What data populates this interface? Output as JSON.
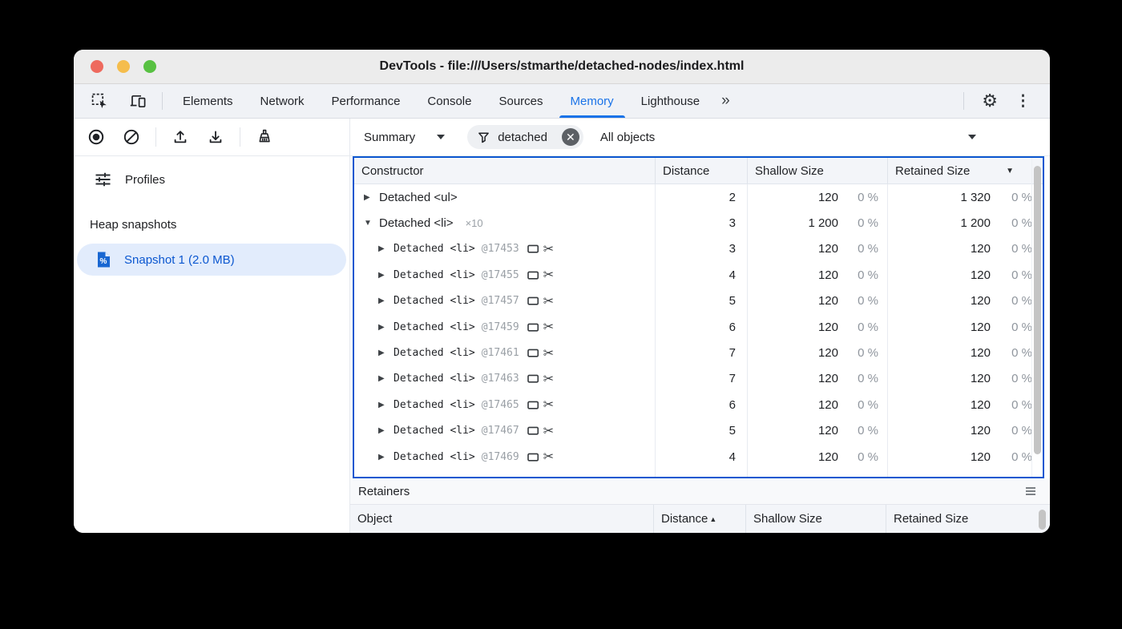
{
  "window": {
    "title": "DevTools - file:///Users/stmarthe/detached-nodes/index.html"
  },
  "tabs": {
    "items": [
      "Elements",
      "Network",
      "Performance",
      "Console",
      "Sources",
      "Memory",
      "Lighthouse"
    ],
    "active": "Memory",
    "overflow_icon": "»"
  },
  "toolbar": {
    "profile_view_selector": "Summary",
    "filter_value": "detached",
    "object_filter": "All objects"
  },
  "sidebar": {
    "profiles_label": "Profiles",
    "heap_snapshots_heading": "Heap snapshots",
    "snapshot_label": "Snapshot 1 (2.0 MB)"
  },
  "grid": {
    "columns": [
      "Constructor",
      "Distance",
      "Shallow Size",
      "Retained Size"
    ],
    "sorted_by": "Retained Size",
    "sort_direction": "desc",
    "rows": [
      {
        "type": "group",
        "expanded": false,
        "label": "Detached <ul>",
        "count": "",
        "id": "",
        "distance": "2",
        "shallow": "120",
        "shallow_pct": "0 %",
        "retained": "1 320",
        "retained_pct": "0 %"
      },
      {
        "type": "group",
        "expanded": true,
        "label": "Detached <li>",
        "count": "×10",
        "id": "",
        "distance": "3",
        "shallow": "1 200",
        "shallow_pct": "0 %",
        "retained": "1 200",
        "retained_pct": "0 %"
      },
      {
        "type": "instance",
        "expanded": false,
        "label": "Detached <li>",
        "count": "",
        "id": "@17453",
        "distance": "3",
        "shallow": "120",
        "shallow_pct": "0 %",
        "retained": "120",
        "retained_pct": "0 %"
      },
      {
        "type": "instance",
        "expanded": false,
        "label": "Detached <li>",
        "count": "",
        "id": "@17455",
        "distance": "4",
        "shallow": "120",
        "shallow_pct": "0 %",
        "retained": "120",
        "retained_pct": "0 %"
      },
      {
        "type": "instance",
        "expanded": false,
        "label": "Detached <li>",
        "count": "",
        "id": "@17457",
        "distance": "5",
        "shallow": "120",
        "shallow_pct": "0 %",
        "retained": "120",
        "retained_pct": "0 %"
      },
      {
        "type": "instance",
        "expanded": false,
        "label": "Detached <li>",
        "count": "",
        "id": "@17459",
        "distance": "6",
        "shallow": "120",
        "shallow_pct": "0 %",
        "retained": "120",
        "retained_pct": "0 %"
      },
      {
        "type": "instance",
        "expanded": false,
        "label": "Detached <li>",
        "count": "",
        "id": "@17461",
        "distance": "7",
        "shallow": "120",
        "shallow_pct": "0 %",
        "retained": "120",
        "retained_pct": "0 %"
      },
      {
        "type": "instance",
        "expanded": false,
        "label": "Detached <li>",
        "count": "",
        "id": "@17463",
        "distance": "7",
        "shallow": "120",
        "shallow_pct": "0 %",
        "retained": "120",
        "retained_pct": "0 %"
      },
      {
        "type": "instance",
        "expanded": false,
        "label": "Detached <li>",
        "count": "",
        "id": "@17465",
        "distance": "6",
        "shallow": "120",
        "shallow_pct": "0 %",
        "retained": "120",
        "retained_pct": "0 %"
      },
      {
        "type": "instance",
        "expanded": false,
        "label": "Detached <li>",
        "count": "",
        "id": "@17467",
        "distance": "5",
        "shallow": "120",
        "shallow_pct": "0 %",
        "retained": "120",
        "retained_pct": "0 %"
      },
      {
        "type": "instance",
        "expanded": false,
        "label": "Detached <li>",
        "count": "",
        "id": "@17469",
        "distance": "4",
        "shallow": "120",
        "shallow_pct": "0 %",
        "retained": "120",
        "retained_pct": "0 %"
      }
    ],
    "partial_row_visible": true
  },
  "retainers": {
    "title": "Retainers",
    "columns": [
      "Object",
      "Distance",
      "Shallow Size",
      "Retained Size"
    ],
    "sorted_by": "Distance",
    "sort_direction": "asc"
  }
}
